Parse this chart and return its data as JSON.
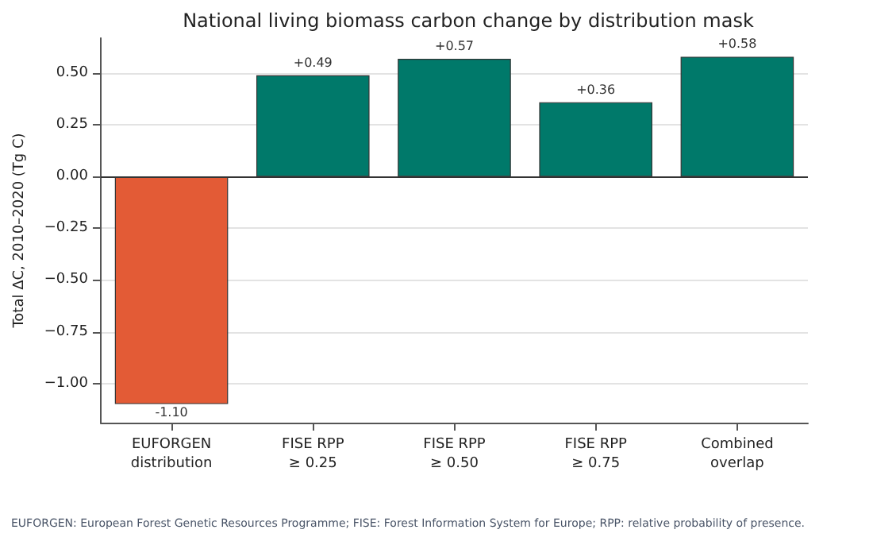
{
  "chart_data": {
    "type": "bar",
    "title": "National living biomass carbon change by distribution mask",
    "ylabel": "Total ΔC, 2010–2020 (Tg C)",
    "categories": [
      "EUFORGEN\ndistribution",
      "FISE RPP\n≥ 0.25",
      "FISE RPP\n≥ 0.50",
      "FISE RPP\n≥ 0.75",
      "Combined\noverlap"
    ],
    "values": [
      -1.1,
      0.49,
      0.57,
      0.36,
      0.58
    ],
    "colors": [
      "#e35b36",
      "#00796a",
      "#00796a",
      "#00796a",
      "#00796a"
    ],
    "value_labels": [
      "-1.10",
      "+0.49",
      "+0.57",
      "+0.36",
      "+0.58"
    ],
    "ylim": [
      -1.19,
      0.67
    ],
    "yticks": [
      {
        "value": -1,
        "label": "−1.00"
      },
      {
        "value": -0.75,
        "label": "−0.75"
      },
      {
        "value": -0.5,
        "label": "−0.50"
      },
      {
        "value": -0.25,
        "label": "−0.25"
      },
      {
        "value": 0,
        "label": "0.00"
      },
      {
        "value": 0.25,
        "label": "0.25"
      },
      {
        "value": 0.5,
        "label": "0.50"
      }
    ],
    "grid": "y",
    "ref_lines": [
      {
        "axis": "y",
        "value": 0,
        "color": "#333333"
      }
    ],
    "annotations": [
      "EUFORGEN: European Forest Genetic Resources Programme; FISE: Forest Information System for Europe; RPP: relative probability of presence."
    ]
  }
}
